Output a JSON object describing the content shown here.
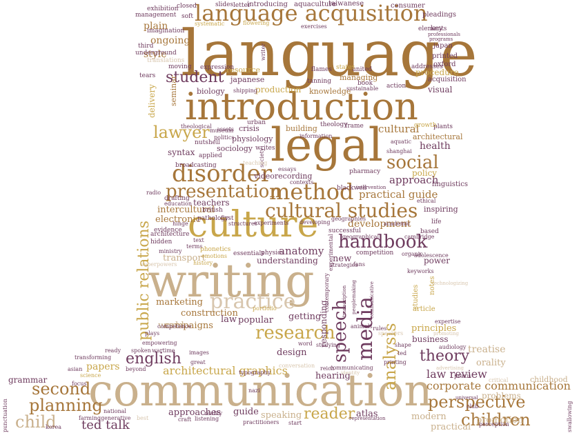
{
  "palette": {
    "brown": "#a6763a",
    "tan": "#c9b08c",
    "gold": "#c8a64a",
    "purple": "#6e3b5e",
    "olive": "#8a7a3c",
    "light": "#d8c6ae"
  },
  "words": [
    {
      "text": "language",
      "color": "#a6763a"
    },
    {
      "text": "communication",
      "color": "#c9b08c"
    },
    {
      "text": "writing",
      "color": "#c9b08c"
    },
    {
      "text": "introduction",
      "color": "#a6763a"
    },
    {
      "text": "legal",
      "color": "#a6763a"
    },
    {
      "text": "culture",
      "color": "#c8a64a"
    },
    {
      "text": "language acquisition",
      "color": "#a6763a"
    },
    {
      "text": "practice",
      "color": "#d8c6ae"
    },
    {
      "text": "disorder",
      "color": "#a6763a"
    },
    {
      "text": "method",
      "color": "#a6763a"
    },
    {
      "text": "presentation",
      "color": "#a6763a"
    },
    {
      "text": "cultural studies",
      "color": "#a6763a"
    },
    {
      "text": "social",
      "color": "#a6763a"
    },
    {
      "text": "research",
      "color": "#c8a64a"
    },
    {
      "text": "handbook",
      "color": "#6e3b5e"
    },
    {
      "text": "speech",
      "color": "#6e3b5e"
    },
    {
      "text": "media",
      "color": "#6e3b5e"
    },
    {
      "text": "analysis",
      "color": "#c8a64a"
    },
    {
      "text": "lawyer",
      "color": "#c8a64a"
    },
    {
      "text": "student",
      "color": "#6e3b5e"
    },
    {
      "text": "public relations",
      "color": "#c8a64a"
    },
    {
      "text": "english",
      "color": "#6e3b5e"
    },
    {
      "text": "second",
      "color": "#a6763a"
    },
    {
      "text": "planning",
      "color": "#a6763a"
    },
    {
      "text": "child",
      "color": "#c9b08c"
    },
    {
      "text": "theory",
      "color": "#6e3b5e"
    },
    {
      "text": "perspective",
      "color": "#a6763a"
    },
    {
      "text": "children",
      "color": "#a6763a"
    },
    {
      "text": "reader",
      "color": "#c8a64a"
    },
    {
      "text": "corporate communication",
      "color": "#a6763a"
    },
    {
      "text": "law review",
      "color": "#6e3b5e"
    },
    {
      "text": "ted talk",
      "color": "#6e3b5e"
    },
    {
      "text": "architectural graphics",
      "color": "#c8a64a"
    },
    {
      "text": "development",
      "color": "#a6763a"
    },
    {
      "text": "practical guide",
      "color": "#a6763a"
    },
    {
      "text": "approach",
      "color": "#6e3b5e"
    },
    {
      "text": "cultural",
      "color": "#a6763a"
    },
    {
      "text": "anatomy",
      "color": "#6e3b5e"
    },
    {
      "text": "health",
      "color": "#6e3b5e"
    },
    {
      "text": "policy",
      "color": "#c8a64a"
    },
    {
      "text": "intercultural",
      "color": "#a6763a"
    },
    {
      "text": "electronic",
      "color": "#a6763a"
    },
    {
      "text": "teachers",
      "color": "#6e3b5e"
    },
    {
      "text": "marketing",
      "color": "#a6763a"
    },
    {
      "text": "construction",
      "color": "#a6763a"
    },
    {
      "text": "campaigns",
      "color": "#a6763a"
    },
    {
      "text": "popular",
      "color": "#6e3b5e"
    },
    {
      "text": "law",
      "color": "#6e3b5e"
    },
    {
      "text": "getting",
      "color": "#6e3b5e"
    },
    {
      "text": "understanding",
      "color": "#6e3b5e"
    },
    {
      "text": "new",
      "color": "#6e3b5e"
    },
    {
      "text": "responding",
      "color": "#6e3b5e"
    },
    {
      "text": "design",
      "color": "#6e3b5e"
    },
    {
      "text": "hearing",
      "color": "#6e3b5e"
    },
    {
      "text": "guide",
      "color": "#6e3b5e"
    },
    {
      "text": "atlas",
      "color": "#6e3b5e"
    },
    {
      "text": "speaking",
      "color": "#c9b08c"
    },
    {
      "text": "modern",
      "color": "#c9b08c"
    },
    {
      "text": "promotion",
      "color": "#c9b08c"
    },
    {
      "text": "practical",
      "color": "#c9b08c"
    },
    {
      "text": "approaches",
      "color": "#6e3b5e"
    },
    {
      "text": "grammar",
      "color": "#6e3b5e"
    },
    {
      "text": "papers",
      "color": "#c8a64a"
    },
    {
      "text": "business",
      "color": "#6e3b5e"
    },
    {
      "text": "principles",
      "color": "#c8a64a"
    },
    {
      "text": "treatise",
      "color": "#c9b08c"
    },
    {
      "text": "orality",
      "color": "#c9b08c"
    },
    {
      "text": "problems",
      "color": "#c9b08c"
    },
    {
      "text": "childhood",
      "color": "#c9b08c"
    },
    {
      "text": "transport",
      "color": "#c9b08c"
    },
    {
      "text": "world",
      "color": "#c9b08c"
    },
    {
      "text": "power",
      "color": "#6e3b5e"
    },
    {
      "text": "plain",
      "color": "#a6763a"
    },
    {
      "text": "ongoing",
      "color": "#a6763a"
    },
    {
      "text": "style",
      "color": "#a6763a"
    },
    {
      "text": "biology",
      "color": "#6e3b5e"
    },
    {
      "text": "resource",
      "color": "#c8a64a"
    },
    {
      "text": "production",
      "color": "#c8a64a"
    },
    {
      "text": "knowledge",
      "color": "#a6763a"
    },
    {
      "text": "managing",
      "color": "#a6763a"
    },
    {
      "text": "visual",
      "color": "#6e3b5e"
    },
    {
      "text": "procedure",
      "color": "#c8a64a"
    },
    {
      "text": "physiology",
      "color": "#6e3b5e"
    },
    {
      "text": "crisis",
      "color": "#6e3b5e"
    },
    {
      "text": "building",
      "color": "#a6763a"
    },
    {
      "text": "sociology",
      "color": "#6e3b5e"
    },
    {
      "text": "syntax",
      "color": "#6e3b5e"
    },
    {
      "text": "videorecording",
      "color": "#6e3b5e"
    },
    {
      "text": "architectural",
      "color": "#a6763a"
    },
    {
      "text": "japanese",
      "color": "#6e3b5e"
    },
    {
      "text": "delivery",
      "color": "#c8a64a"
    },
    {
      "text": "seminar",
      "color": "#a6763a"
    },
    {
      "text": "essentials",
      "color": "#6e3b5e"
    },
    {
      "text": "inspiring",
      "color": "#6e3b5e"
    },
    {
      "text": "linguistics",
      "color": "#6e3b5e"
    },
    {
      "text": "acquisition",
      "color": "#6e3b5e"
    },
    {
      "text": "oxford",
      "color": "#6e3b5e"
    },
    {
      "text": "printed",
      "color": "#6e3b5e"
    },
    {
      "text": "japan",
      "color": "#6e3b5e"
    },
    {
      "text": "key",
      "color": "#6e3b5e"
    },
    {
      "text": "pleadings",
      "color": "#6e3b5e"
    },
    {
      "text": "consumer",
      "color": "#6e3b5e"
    },
    {
      "text": "taiwanese",
      "color": "#6e3b5e"
    },
    {
      "text": "aquaculture",
      "color": "#6e3b5e"
    },
    {
      "text": "introducing",
      "color": "#6e3b5e"
    },
    {
      "text": "letter",
      "color": "#6e3b5e"
    },
    {
      "text": "slides",
      "color": "#6e3b5e"
    },
    {
      "text": "closed",
      "color": "#6e3b5e"
    },
    {
      "text": "exhibition",
      "color": "#6e3b5e"
    },
    {
      "text": "management",
      "color": "#6e3b5e"
    },
    {
      "text": "imagination",
      "color": "#6e3b5e"
    },
    {
      "text": "third",
      "color": "#6e3b5e"
    },
    {
      "text": "underground",
      "color": "#6e3b5e"
    },
    {
      "text": "translations",
      "color": "#d8c6ae"
    },
    {
      "text": "tears",
      "color": "#6e3b5e"
    },
    {
      "text": "moving",
      "color": "#6e3b5e"
    },
    {
      "text": "expression",
      "color": "#6e3b5e"
    },
    {
      "text": "united",
      "color": "#6e3b5e"
    },
    {
      "text": "states",
      "color": "#c8a64a"
    },
    {
      "text": "flames",
      "color": "#6e3b5e"
    },
    {
      "text": "tanning",
      "color": "#6e3b5e"
    },
    {
      "text": "book",
      "color": "#6e3b5e"
    },
    {
      "text": "sustainable",
      "color": "#6e3b5e"
    },
    {
      "text": "action",
      "color": "#6e3b5e"
    },
    {
      "text": "addresses",
      "color": "#6e3b5e"
    },
    {
      "text": "shipping",
      "color": "#6e3b5e"
    },
    {
      "text": "theology",
      "color": "#6e3b5e"
    },
    {
      "text": "frame",
      "color": "#6e3b5e"
    },
    {
      "text": "information",
      "color": "#6e3b5e"
    },
    {
      "text": "aquatic",
      "color": "#6e3b5e"
    },
    {
      "text": "shanghai",
      "color": "#6e3b5e"
    },
    {
      "text": "plants",
      "color": "#6e3b5e"
    },
    {
      "text": "growth",
      "color": "#c8a64a"
    },
    {
      "text": "theological",
      "color": "#6e3b5e"
    },
    {
      "text": "urban",
      "color": "#6e3b5e"
    },
    {
      "text": "nutshell",
      "color": "#6e3b5e"
    },
    {
      "text": "museum",
      "color": "#6e3b5e"
    },
    {
      "text": "assets",
      "color": "#6e3b5e"
    },
    {
      "text": "politics",
      "color": "#6e3b5e"
    },
    {
      "text": "applied",
      "color": "#6e3b5e"
    },
    {
      "text": "writes",
      "color": "#6e3b5e"
    },
    {
      "text": "society",
      "color": "#6e3b5e"
    },
    {
      "text": "teaching",
      "color": "#d8c6ae"
    },
    {
      "text": "essays",
      "color": "#6e3b5e"
    },
    {
      "text": "pharmacy",
      "color": "#6e3b5e"
    },
    {
      "text": "broadcasting",
      "color": "#6e3b5e"
    },
    {
      "text": "contexts",
      "color": "#6e3b5e"
    },
    {
      "text": "blackwell",
      "color": "#6e3b5e"
    },
    {
      "text": "intervention",
      "color": "#6e3b5e"
    },
    {
      "text": "ethical",
      "color": "#6e3b5e"
    },
    {
      "text": "radio",
      "color": "#6e3b5e"
    },
    {
      "text": "drafting",
      "color": "#6e3b5e"
    },
    {
      "text": "education",
      "color": "#6e3b5e"
    },
    {
      "text": "british",
      "color": "#6e3b5e"
    },
    {
      "text": "pathology",
      "color": "#6e3b5e"
    },
    {
      "text": "first",
      "color": "#6e3b5e"
    },
    {
      "text": "structures",
      "color": "#6e3b5e"
    },
    {
      "text": "experiments",
      "color": "#6e3b5e"
    },
    {
      "text": "developing",
      "color": "#6e3b5e"
    },
    {
      "text": "geographies",
      "color": "#6e3b5e"
    },
    {
      "text": "academic",
      "color": "#6e3b5e"
    },
    {
      "text": "life",
      "color": "#6e3b5e"
    },
    {
      "text": "based",
      "color": "#6e3b5e"
    },
    {
      "text": "cambridge",
      "color": "#6e3b5e"
    },
    {
      "text": "successful",
      "color": "#6e3b5e"
    },
    {
      "text": "geographical",
      "color": "#6e3b5e"
    },
    {
      "text": "experimental",
      "color": "#6e3b5e"
    },
    {
      "text": "evidence",
      "color": "#6e3b5e"
    },
    {
      "text": "architecture",
      "color": "#6e3b5e"
    },
    {
      "text": "hinge",
      "color": "#6e3b5e"
    },
    {
      "text": "hidden",
      "color": "#6e3b5e"
    },
    {
      "text": "text",
      "color": "#6e3b5e"
    },
    {
      "text": "terms",
      "color": "#6e3b5e"
    },
    {
      "text": "ministry",
      "color": "#6e3b5e"
    },
    {
      "text": "phonetics",
      "color": "#c8a64a"
    },
    {
      "text": "emotions",
      "color": "#c8a64a"
    },
    {
      "text": "physics",
      "color": "#6e3b5e"
    },
    {
      "text": "competition",
      "color": "#6e3b5e"
    },
    {
      "text": "organic",
      "color": "#6e3b5e"
    },
    {
      "text": "adolescence",
      "color": "#6e3b5e"
    },
    {
      "text": "keyworks",
      "color": "#6e3b5e"
    },
    {
      "text": "history",
      "color": "#c8a64a"
    },
    {
      "text": "superpowers",
      "color": "#d8c6ae"
    },
    {
      "text": "strategies",
      "color": "#6e3b5e"
    },
    {
      "text": "fans",
      "color": "#6e3b5e"
    },
    {
      "text": "technologizing",
      "color": "#d8c6ae"
    },
    {
      "text": "contemporary",
      "color": "#6e3b5e"
    },
    {
      "text": "transcription",
      "color": "#6e3b5e"
    },
    {
      "text": "peoplemaking",
      "color": "#6e3b5e"
    },
    {
      "text": "communicative",
      "color": "#6e3b5e"
    },
    {
      "text": "article",
      "color": "#c8a64a"
    },
    {
      "text": "notes",
      "color": "#c8a64a"
    },
    {
      "text": "studies",
      "color": "#c8a64a"
    },
    {
      "text": "portfolio",
      "color": "#c8a64a"
    },
    {
      "text": "animals",
      "color": "#6e3b5e"
    },
    {
      "text": "rules",
      "color": "#6e3b5e"
    },
    {
      "text": "speakers",
      "color": "#d8c6ae"
    },
    {
      "text": "expertise",
      "color": "#6e3b5e"
    },
    {
      "text": "promoting",
      "color": "#d8c6ae"
    },
    {
      "text": "plays",
      "color": "#6e3b5e"
    },
    {
      "text": "competence",
      "color": "#6e3b5e"
    },
    {
      "text": "empowering",
      "color": "#6e3b5e"
    },
    {
      "text": "wartime",
      "color": "#6e3b5e"
    },
    {
      "text": "spoken",
      "color": "#6e3b5e"
    },
    {
      "text": "images",
      "color": "#6e3b5e"
    },
    {
      "text": "great",
      "color": "#6e3b5e"
    },
    {
      "text": "word",
      "color": "#6e3b5e"
    },
    {
      "text": "studying",
      "color": "#6e3b5e"
    },
    {
      "text": "shape",
      "color": "#6e3b5e"
    },
    {
      "text": "audiology",
      "color": "#6e3b5e"
    },
    {
      "text": "ready",
      "color": "#6e3b5e"
    },
    {
      "text": "transforming",
      "color": "#6e3b5e"
    },
    {
      "text": "beyond",
      "color": "#6e3b5e"
    },
    {
      "text": "asian",
      "color": "#6e3b5e"
    },
    {
      "text": "science",
      "color": "#c8a64a"
    },
    {
      "text": "focus",
      "color": "#6e3b5e"
    },
    {
      "text": "typography",
      "color": "#6e3b5e"
    },
    {
      "text": "conversation",
      "color": "#d8c6ae"
    },
    {
      "text": "reich",
      "color": "#6e3b5e"
    },
    {
      "text": "communicating",
      "color": "#6e3b5e"
    },
    {
      "text": "identity",
      "color": "#d8c6ae"
    },
    {
      "text": "printing",
      "color": "#6e3b5e"
    },
    {
      "text": "ted",
      "color": "#6e3b5e"
    },
    {
      "text": "advertising",
      "color": "#d8c6ae"
    },
    {
      "text": "praxis",
      "color": "#6e3b5e"
    },
    {
      "text": "critical",
      "color": "#d8c6ae"
    },
    {
      "text": "universal",
      "color": "#6e3b5e"
    },
    {
      "text": "club",
      "color": "#6e3b5e"
    },
    {
      "text": "perception",
      "color": "#6e3b5e"
    },
    {
      "text": "swallowing",
      "color": "#6e3b5e"
    },
    {
      "text": "punctuation",
      "color": "#6e3b5e"
    },
    {
      "text": "national",
      "color": "#6e3b5e"
    },
    {
      "text": "generative",
      "color": "#6e3b5e"
    },
    {
      "text": "farming",
      "color": "#6e3b5e"
    },
    {
      "text": "korea",
      "color": "#6e3b5e"
    },
    {
      "text": "best",
      "color": "#d8c6ae"
    },
    {
      "text": "craft",
      "color": "#6e3b5e"
    },
    {
      "text": "listening",
      "color": "#6e3b5e"
    },
    {
      "text": "reality",
      "color": "#6e3b5e"
    },
    {
      "text": "practitioners",
      "color": "#6e3b5e"
    },
    {
      "text": "start",
      "color": "#6e3b5e"
    },
    {
      "text": "representation",
      "color": "#6e3b5e"
    },
    {
      "text": "nazi",
      "color": "#6e3b5e"
    },
    {
      "text": "soft",
      "color": "#6e3b5e"
    },
    {
      "text": "systematic",
      "color": "#c8a64a"
    },
    {
      "text": "flowering",
      "color": "#c8a64a"
    },
    {
      "text": "exercises",
      "color": "#6e3b5e"
    },
    {
      "text": "elements",
      "color": "#6e3b5e"
    },
    {
      "text": "professionals",
      "color": "#6e3b5e"
    },
    {
      "text": "programs",
      "color": "#6e3b5e"
    },
    {
      "text": "writer",
      "color": "#6e3b5e"
    }
  ]
}
